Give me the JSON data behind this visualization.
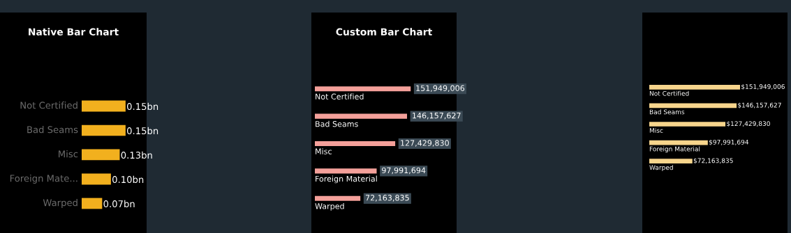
{
  "chart_data": [
    {
      "type": "bar",
      "orientation": "horizontal",
      "title": "Native Bar Chart",
      "categories": [
        "Not Certified",
        "Bad Seams",
        "Misc",
        "Foreign Mate...",
        "Warped"
      ],
      "values": [
        0.15,
        0.15,
        0.13,
        0.1,
        0.07
      ],
      "value_labels": [
        "0.15bn",
        "0.15bn",
        "0.13bn",
        "0.10bn",
        "0.07bn"
      ],
      "color": "#f2b01e"
    },
    {
      "type": "bar",
      "orientation": "horizontal",
      "title": "Custom Bar Chart",
      "categories": [
        "Not Certified",
        "Bad Seams",
        "Misc",
        "Foreign Material",
        "Warped"
      ],
      "values": [
        151949006,
        146157627,
        127429830,
        97991694,
        72163835
      ],
      "value_labels": [
        "151,949,006",
        "146,157,627",
        "127,429,830",
        "97,991,694",
        "72,163,835"
      ],
      "color": "#f4a09a"
    },
    {
      "type": "bar",
      "orientation": "horizontal",
      "categories": [
        "Not Certified",
        "Bad Seams",
        "Misc",
        "Foreign Material",
        "Warped"
      ],
      "values": [
        151949006,
        146157627,
        127429830,
        97991694,
        72163835
      ],
      "value_labels": [
        "$151,949,006",
        "$146,157,627",
        "$127,429,830",
        "$97,991,694",
        "$72,163,835"
      ],
      "color": "#f7d58c"
    }
  ]
}
